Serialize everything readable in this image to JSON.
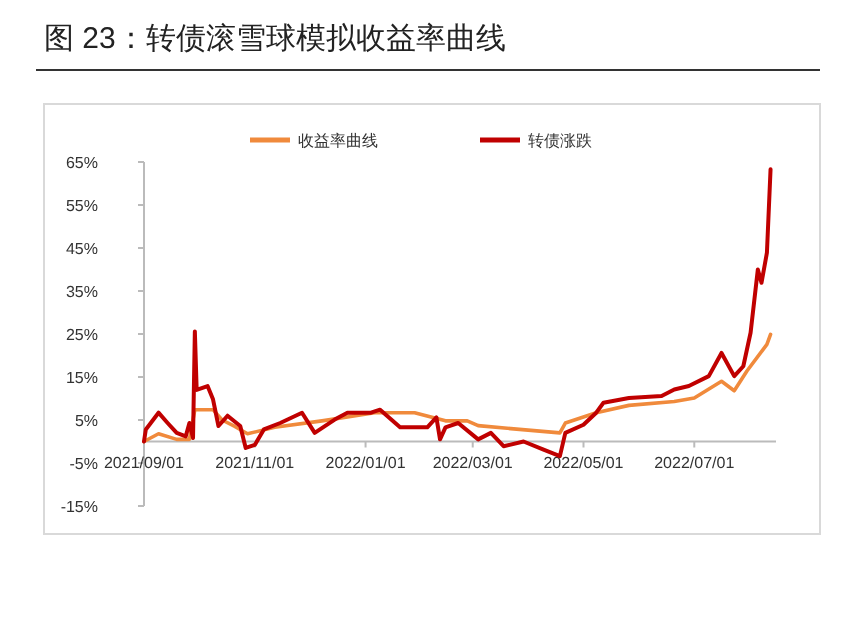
{
  "chart_data": {
    "type": "line",
    "title": "图 23：转债滚雪球模拟收益率曲线",
    "legend": "top",
    "grid": false,
    "line_style": "solid",
    "marker": "none",
    "xlim": [
      "2021-09-01",
      "2022-08-15"
    ],
    "xticks": [
      {
        "value": "2021-09-01",
        "label": "2021/09/01"
      },
      {
        "value": "2021-11-01",
        "label": "2021/11/01"
      },
      {
        "value": "2022-01-01",
        "label": "2022/01/01"
      },
      {
        "value": "2022-03-01",
        "label": "2022/03/01"
      },
      {
        "value": "2022-05-01",
        "label": "2022/05/01"
      },
      {
        "value": "2022-07-01",
        "label": "2022/07/01"
      }
    ],
    "ylim": [
      -15,
      65
    ],
    "yticks": [
      {
        "value": -15,
        "label": "-15%"
      },
      {
        "value": -5,
        "label": "-5%"
      },
      {
        "value": 5,
        "label": "5%"
      },
      {
        "value": 15,
        "label": "15%"
      },
      {
        "value": 25,
        "label": "25%"
      },
      {
        "value": 35,
        "label": "35%"
      },
      {
        "value": 45,
        "label": "45%"
      },
      {
        "value": 55,
        "label": "55%"
      },
      {
        "value": 65,
        "label": "65%"
      }
    ],
    "series": [
      {
        "name": "收益率曲线",
        "color": "#f08a3c",
        "x": [
          "2021-09-01",
          "2021-09-09",
          "2021-09-19",
          "2021-09-26",
          "2021-09-29",
          "2021-10-09",
          "2021-10-14",
          "2021-10-21",
          "2021-10-28",
          "2021-11-12",
          "2021-12-08",
          "2022-01-06",
          "2022-01-28",
          "2022-02-14",
          "2022-02-26",
          "2022-03-04",
          "2022-03-22",
          "2022-04-18",
          "2022-04-21",
          "2022-05-08",
          "2022-05-26",
          "2022-06-20",
          "2022-07-01",
          "2022-07-16",
          "2022-07-23",
          "2022-07-30",
          "2022-08-10",
          "2022-08-12"
        ],
        "values": [
          0,
          1.8,
          0.5,
          0.5,
          7.4,
          7.4,
          5,
          3.5,
          1.8,
          3.3,
          4.8,
          6.7,
          6.7,
          4.8,
          4.8,
          3.7,
          3,
          2,
          4.3,
          6.7,
          8.4,
          9.3,
          10.1,
          14,
          11.8,
          16.4,
          22.6,
          24.9
        ]
      },
      {
        "name": "转债涨跌",
        "color": "#c00000",
        "x": [
          "2021-09-01",
          "2021-09-02",
          "2021-09-04",
          "2021-09-09",
          "2021-09-14",
          "2021-09-19",
          "2021-09-24",
          "2021-09-26",
          "2021-09-28",
          "2021-09-29",
          "2021-09-30",
          "2021-10-06",
          "2021-10-09",
          "2021-10-12",
          "2021-10-17",
          "2021-10-24",
          "2021-10-27",
          "2021-11-01",
          "2021-11-06",
          "2021-11-15",
          "2021-11-27",
          "2021-12-04",
          "2021-12-15",
          "2021-12-22",
          "2022-01-04",
          "2022-01-09",
          "2022-01-20",
          "2022-02-04",
          "2022-02-09",
          "2022-02-11",
          "2022-02-14",
          "2022-02-21",
          "2022-03-04",
          "2022-03-11",
          "2022-03-18",
          "2022-03-29",
          "2022-04-09",
          "2022-04-18",
          "2022-04-21",
          "2022-05-01",
          "2022-05-08",
          "2022-05-12",
          "2022-05-26",
          "2022-06-13",
          "2022-06-20",
          "2022-06-28",
          "2022-07-09",
          "2022-07-16",
          "2022-07-23",
          "2022-07-28",
          "2022-08-01",
          "2022-08-05",
          "2022-08-07",
          "2022-08-10",
          "2022-08-12"
        ],
        "values": [
          0,
          2.8,
          3.9,
          6.7,
          4.3,
          2,
          1.2,
          4.3,
          0.8,
          25.6,
          12,
          12.9,
          9.8,
          3.6,
          6,
          3.6,
          -1.5,
          -0.8,
          2.8,
          4.3,
          6.7,
          2,
          5.1,
          6.7,
          6.7,
          7.4,
          3.3,
          3.3,
          5.6,
          0.5,
          3.3,
          4.3,
          0.5,
          2,
          -1.1,
          0,
          -1.9,
          -3.4,
          2,
          3.9,
          6.7,
          9,
          10.1,
          10.6,
          12.1,
          12.9,
          15.2,
          20.6,
          15.2,
          17.5,
          25.3,
          40,
          36.9,
          43.9,
          63.3
        ]
      }
    ]
  }
}
